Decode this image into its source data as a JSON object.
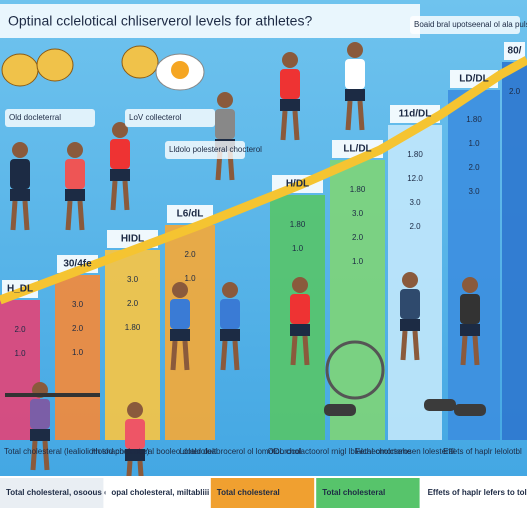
{
  "title": "Optinal cclelotical chliserverol levels for athletes?",
  "callouts": [
    "Old docleterral",
    "LoV collecterol",
    "Lldolo polesteral chocterol",
    "Boaid bral upotseenal ol ala pulsonee"
  ],
  "bars": [
    {
      "label": "H_DL",
      "color": "#e0457a",
      "rows": [
        "2.0",
        "1.0"
      ]
    },
    {
      "label": "30/4fe",
      "color": "#f28a3c",
      "rows": [
        "3.0",
        "2.0",
        "1.0"
      ]
    },
    {
      "label": "HIDL",
      "color": "#f6c445",
      "rows": [
        "3.0",
        "2.0",
        "1.80"
      ]
    },
    {
      "label": "L6/dL",
      "color": "#f3a93a",
      "rows": [
        "2.0",
        "1.0"
      ]
    },
    {
      "label": "H/DL",
      "color": "#57c46b",
      "rows": [
        "1.80",
        "1.0"
      ]
    },
    {
      "label": "LL/DL",
      "color": "#7ed47a",
      "rows": [
        "1.80",
        "3.0",
        "2.0",
        "1.0"
      ]
    },
    {
      "label": "11d/DL",
      "color": "#bfe6fb",
      "rows": [
        "1.80",
        "12.0",
        "3.0",
        "2.0"
      ]
    },
    {
      "label": "LD/DL",
      "color": "#3d8fe0",
      "rows": [
        "1.80",
        "1.0",
        "2.0",
        "3.0"
      ]
    },
    {
      "label": "80/",
      "color": "#2f78cf",
      "rows": [
        "2.0"
      ]
    }
  ],
  "captions": [
    "Total cholesteral (lealiolioth shaporornce)",
    "Hotod cholesteral booleo doteroloal",
    "Lolald deltorocerol ol lomotoorocol",
    "ODL cholactoorol rnigl lblalcheomorsehe",
    "Fetal cholctorosen lolesteral",
    "Effets of haplr lelolotbl"
  ],
  "footer": [
    "Total cholesteral, osoous ool betors",
    "opal cholesteral, miltabliii olesterol",
    "Total cholesteral",
    "Total cholesteral",
    "Effets of haplr lefers to toldly no"
  ]
}
